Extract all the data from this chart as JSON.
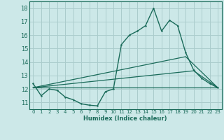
{
  "xlabel": "Humidex (Indice chaleur)",
  "background_color": "#cce8e8",
  "grid_color": "#aacccc",
  "line_color": "#1a6b5a",
  "xlim": [
    -0.5,
    23.5
  ],
  "ylim": [
    10.5,
    18.5
  ],
  "xticks": [
    0,
    1,
    2,
    3,
    4,
    5,
    6,
    7,
    8,
    9,
    10,
    11,
    12,
    13,
    14,
    15,
    16,
    17,
    18,
    19,
    20,
    21,
    22,
    23
  ],
  "yticks": [
    11,
    12,
    13,
    14,
    15,
    16,
    17,
    18
  ],
  "series1_x": [
    0,
    1,
    2,
    3,
    4,
    5,
    6,
    7,
    8,
    9,
    10,
    11,
    12,
    13,
    14,
    15,
    16,
    17,
    18,
    19,
    20,
    21,
    22,
    23
  ],
  "series1_y": [
    12.4,
    11.5,
    12.0,
    11.9,
    11.4,
    11.2,
    10.9,
    10.8,
    10.75,
    11.8,
    12.0,
    15.3,
    16.0,
    16.3,
    16.7,
    18.0,
    16.3,
    17.1,
    16.7,
    14.7,
    13.4,
    12.8,
    12.4,
    12.1
  ],
  "series2_x": [
    0,
    23
  ],
  "series2_y": [
    12.1,
    12.1
  ],
  "series3_x": [
    0,
    19,
    23
  ],
  "series3_y": [
    12.1,
    14.4,
    12.1
  ],
  "series4_x": [
    0,
    20,
    23
  ],
  "series4_y": [
    12.1,
    13.35,
    12.1
  ]
}
